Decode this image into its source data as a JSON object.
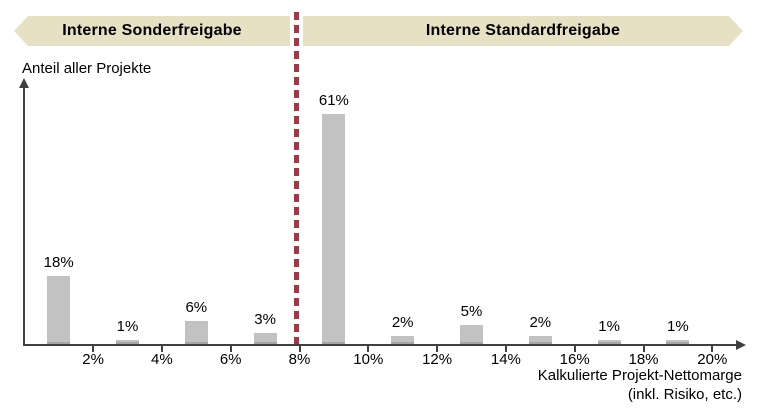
{
  "header": {
    "left_label": "Interne Sonderfreigabe",
    "right_label": "Interne Standardfreigabe",
    "band_color": "#e6e0c4",
    "divider_color": "#9c3a4a"
  },
  "chart_data": {
    "type": "bar",
    "title": "",
    "ylabel": "Anteil aller Projekte",
    "xlabel": "Kalkulierte Projekt-Nettomarge",
    "xlabel_line2": "(inkl. Risiko, etc.)",
    "x": [
      1,
      3,
      5,
      7,
      9,
      11,
      13,
      15,
      17,
      19
    ],
    "values": [
      18,
      1,
      6,
      3,
      61,
      2,
      5,
      2,
      1,
      1
    ],
    "bar_labels": [
      "18%",
      "1%",
      "6%",
      "3%",
      "61%",
      "2%",
      "5%",
      "2%",
      "1%",
      "1%"
    ],
    "x_ticks": [
      2,
      4,
      6,
      8,
      10,
      12,
      14,
      16,
      18,
      20
    ],
    "x_tick_labels": [
      "2%",
      "4%",
      "6%",
      "8%",
      "10%",
      "12%",
      "14%",
      "16%",
      "18%",
      "20%"
    ],
    "xlim": [
      0,
      21
    ],
    "ylim": [
      0,
      68
    ],
    "divider_x": 8,
    "bar_color": "#c2c2c2",
    "grid": false,
    "legend": null
  }
}
